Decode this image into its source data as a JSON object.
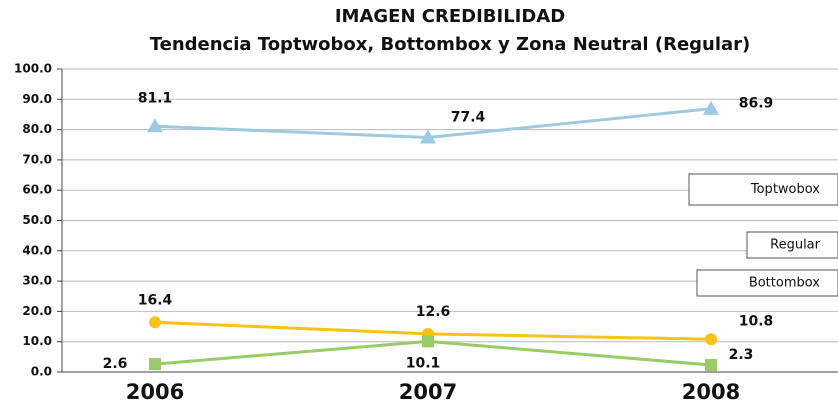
{
  "chart_data": {
    "type": "line",
    "title": "IMAGEN CREDIBILIDAD",
    "subtitle": "Tendencia Toptwobox, Bottombox y Zona Neutral (Regular)",
    "categories": [
      "2006",
      "2007",
      "2008"
    ],
    "series": [
      {
        "name": "Toptwobox",
        "color": "#9ccae0",
        "marker": "triangle",
        "values": [
          81.1,
          77.4,
          86.9
        ]
      },
      {
        "name": "Regular",
        "color": "#f7c315",
        "marker": "circle",
        "values": [
          16.4,
          12.6,
          10.8
        ]
      },
      {
        "name": "Bottombox",
        "color": "#99cc66",
        "marker": "square",
        "values": [
          2.6,
          10.1,
          2.3
        ]
      }
    ],
    "ylim": [
      0,
      100
    ],
    "yticks": [
      {
        "value": 0,
        "label": "0.0"
      },
      {
        "value": 10,
        "label": "10.0"
      },
      {
        "value": 20,
        "label": "20.0"
      },
      {
        "value": 30,
        "label": "30.0"
      },
      {
        "value": 40,
        "label": "40.0"
      },
      {
        "value": 50,
        "label": "50.0"
      },
      {
        "value": 60,
        "label": "60.0"
      },
      {
        "value": 70,
        "label": "70.0"
      },
      {
        "value": 80,
        "label": "80.0"
      },
      {
        "value": 90,
        "label": "90.0"
      },
      {
        "value": 100,
        "label": "100.0"
      }
    ],
    "grid": true
  }
}
